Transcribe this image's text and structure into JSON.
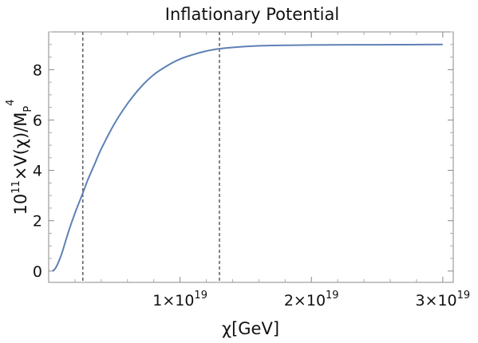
{
  "chart_data": {
    "type": "line",
    "title": "Inflationary Potential",
    "xlabel": {
      "symbol": "χ",
      "unit": "[GeV]"
    },
    "ylabel": {
      "prefix": "10",
      "prefix_exp": "11",
      "body": "×V(χ)/M",
      "sub": "P",
      "sup": "4"
    },
    "xlim": [
      0,
      3.08e+19
    ],
    "ylim": [
      -0.45,
      9.5
    ],
    "x_ticks": [
      {
        "value": 1e+19,
        "mantissa": "1×10",
        "exp": "19"
      },
      {
        "value": 2e+19,
        "mantissa": "2×10",
        "exp": "19"
      },
      {
        "value": 3e+19,
        "mantissa": "3×10",
        "exp": "19"
      }
    ],
    "y_ticks": [
      {
        "value": 0,
        "label": "0"
      },
      {
        "value": 2,
        "label": "2"
      },
      {
        "value": 4,
        "label": "4"
      },
      {
        "value": 6,
        "label": "6"
      },
      {
        "value": 8,
        "label": "8"
      }
    ],
    "vertical_lines": [
      2.6e+18,
      1.3e+19
    ],
    "series": [
      {
        "color": "#5e81b5",
        "x": [
          3e+17,
          5e+17,
          7e+17,
          1e+18,
          1.5e+18,
          2e+18,
          2.6e+18,
          3e+18,
          3.5e+18,
          4e+18,
          5e+18,
          6e+18,
          7e+18,
          8e+18,
          9e+18,
          1e+19,
          1.1e+19,
          1.2e+19,
          1.3e+19,
          1.5e+19,
          1.7e+19,
          2e+19,
          2.5e+19,
          3e+19
        ],
        "y": [
          0.0,
          0.1,
          0.3,
          0.7,
          1.55,
          2.3,
          3.1,
          3.65,
          4.25,
          4.85,
          5.85,
          6.65,
          7.3,
          7.8,
          8.15,
          8.42,
          8.6,
          8.74,
          8.83,
          8.92,
          8.96,
          8.98,
          8.99,
          9.0
        ]
      }
    ],
    "grid": false
  }
}
